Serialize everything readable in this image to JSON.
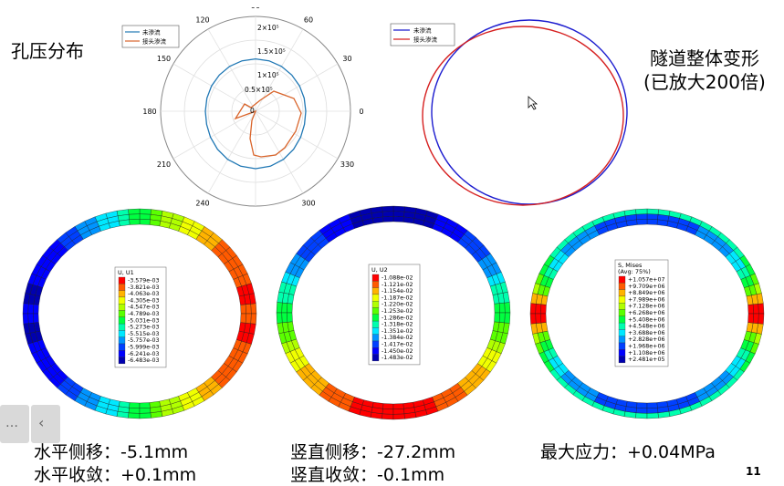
{
  "title_left": "孔压分布",
  "title_right_1": "隧道整体变形",
  "title_right_2": "(已放大200倍)",
  "polar": {
    "angle_labels": [
      "0",
      "30",
      "60",
      "90",
      "120",
      "150",
      "180",
      "210",
      "240",
      "270",
      "300",
      "330"
    ],
    "radial_labels": [
      "0",
      "0.5×10⁵",
      "1×10⁵",
      "1.5×10⁵",
      "2×10⁵"
    ],
    "legend": [
      {
        "name": "未渗流",
        "color": "#1f77b4"
      },
      {
        "name": "接头渗流",
        "color": "#d9642a"
      }
    ]
  },
  "deform": {
    "legend": [
      {
        "name": "未渗流",
        "color": "#1c1ccf"
      },
      {
        "name": "接头渗流",
        "color": "#d62020"
      }
    ]
  },
  "contour1": {
    "title": "U, U1",
    "values": [
      "-3.579e-03",
      "-3.821e-03",
      "-4.063e-03",
      "-4.305e-03",
      "-4.547e-03",
      "-4.789e-03",
      "-5.031e-03",
      "-5.273e-03",
      "-5.515e-03",
      "-5.757e-03",
      "-5.999e-03",
      "-6.241e-03",
      "-6.483e-03"
    ]
  },
  "contour2": {
    "title": "U, U2",
    "values": [
      "-1.088e-02",
      "-1.121e-02",
      "-1.154e-02",
      "-1.187e-02",
      "-1.220e-02",
      "-1.253e-02",
      "-1.286e-02",
      "-1.318e-02",
      "-1.351e-02",
      "-1.384e-02",
      "-1.417e-02",
      "-1.450e-02",
      "-1.483e-02"
    ]
  },
  "contour3": {
    "title": "S, Mises",
    "subtitle": "(Avg: 75%)",
    "values": [
      "+1.057e+07",
      "+9.709e+06",
      "+8.849e+06",
      "+7.989e+06",
      "+7.128e+06",
      "+6.268e+06",
      "+5.408e+06",
      "+4.548e+06",
      "+3.688e+06",
      "+2.828e+06",
      "+1.968e+06",
      "+1.108e+06",
      "+2.481e+05"
    ]
  },
  "captions": {
    "h_disp": "水平侧移：-5.1mm",
    "h_conv": "水平收敛：+0.1mm",
    "v_disp": "竖直侧移：-27.2mm",
    "v_conv": "竖直收敛：-0.1mm",
    "max_stress": "最大应力：+0.04MPa"
  },
  "page_number": "11",
  "colors": {
    "scale": [
      "#ff0000",
      "#ff5a00",
      "#ffb300",
      "#f0ff00",
      "#b0ff00",
      "#5aff00",
      "#00ff40",
      "#00ffae",
      "#00e8ff",
      "#0094ff",
      "#0040ff",
      "#0000ff",
      "#0000b0"
    ]
  }
}
